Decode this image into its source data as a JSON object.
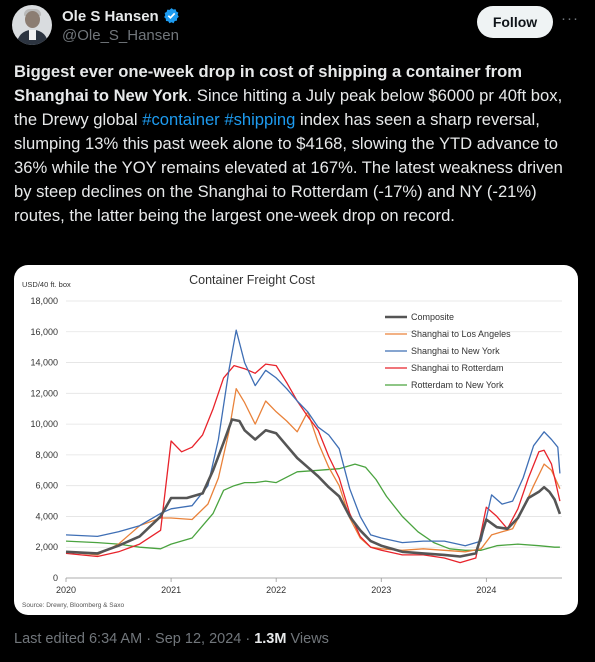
{
  "author": {
    "name": "Ole S Hansen",
    "handle": "@Ole_S_Hansen"
  },
  "actions": {
    "follow_label": "Follow",
    "more_label": "···"
  },
  "tweet": {
    "bold_text": "Biggest ever one-week drop in cost of shipping a container from Shanghai to New York",
    "text_1": ". Since hitting a July peak below $6000 pr 40ft box, the Drewy global ",
    "hashtag_1": "#container",
    "hashtag_2": "#shipping",
    "text_2": " index has seen a sharp reversal, slumping 13% this past week alone to $4168, slowing the YTD advance to 36% while the YOY remains elevated at 167%. The latest weakness driven by steep declines on the Shanghai to Rotterdam (-17%) and NY (-21%) routes, the latter being the largest one-week drop on record."
  },
  "meta": {
    "edited": "Last edited 6:34 AM · Sep 12, 2024 · ",
    "views_count": "1.3M",
    "views_label": " Views"
  },
  "chart_data": {
    "type": "line",
    "title": "Container Freight Cost",
    "unit_label": "USD/40 ft. box",
    "source": "Source: Drewry, Bloomberg & Saxo",
    "xlim": [
      2020,
      2024.72
    ],
    "ylim": [
      0,
      18000
    ],
    "y_ticks": [
      "0",
      "2,000",
      "4,000",
      "6,000",
      "8,000",
      "10,000",
      "12,000",
      "14,000",
      "16,000",
      "18,000"
    ],
    "x_ticks": [
      "2020",
      "2021",
      "2022",
      "2023",
      "2024"
    ],
    "grid": "horizontal",
    "legend_position": "top-right",
    "series": [
      {
        "name": "Composite",
        "color": "#555555",
        "width": 2.6,
        "points": [
          [
            2020.0,
            1700
          ],
          [
            2020.3,
            1600
          ],
          [
            2020.5,
            2100
          ],
          [
            2020.7,
            2700
          ],
          [
            2020.9,
            4000
          ],
          [
            2021.0,
            5200
          ],
          [
            2021.15,
            5200
          ],
          [
            2021.3,
            5500
          ],
          [
            2021.4,
            7000
          ],
          [
            2021.5,
            8800
          ],
          [
            2021.58,
            10300
          ],
          [
            2021.65,
            10200
          ],
          [
            2021.7,
            9600
          ],
          [
            2021.8,
            9000
          ],
          [
            2021.9,
            9600
          ],
          [
            2022.0,
            9400
          ],
          [
            2022.1,
            8600
          ],
          [
            2022.2,
            7800
          ],
          [
            2022.3,
            7200
          ],
          [
            2022.4,
            6600
          ],
          [
            2022.5,
            5900
          ],
          [
            2022.6,
            5300
          ],
          [
            2022.7,
            4000
          ],
          [
            2022.8,
            3100
          ],
          [
            2022.9,
            2400
          ],
          [
            2023.0,
            2100
          ],
          [
            2023.2,
            1700
          ],
          [
            2023.4,
            1600
          ],
          [
            2023.6,
            1500
          ],
          [
            2023.75,
            1400
          ],
          [
            2023.9,
            1600
          ],
          [
            2024.0,
            3800
          ],
          [
            2024.1,
            3300
          ],
          [
            2024.2,
            3200
          ],
          [
            2024.3,
            3900
          ],
          [
            2024.4,
            5200
          ],
          [
            2024.5,
            5600
          ],
          [
            2024.55,
            5900
          ],
          [
            2024.6,
            5600
          ],
          [
            2024.65,
            5100
          ],
          [
            2024.7,
            4168
          ]
        ]
      },
      {
        "name": "Shanghai to Los Angeles",
        "color": "#e9823a",
        "width": 1.3,
        "points": [
          [
            2020.0,
            1700
          ],
          [
            2020.3,
            1500
          ],
          [
            2020.5,
            2200
          ],
          [
            2020.7,
            3400
          ],
          [
            2020.9,
            3900
          ],
          [
            2021.0,
            3900
          ],
          [
            2021.2,
            3800
          ],
          [
            2021.35,
            4800
          ],
          [
            2021.45,
            6500
          ],
          [
            2021.55,
            9500
          ],
          [
            2021.62,
            12300
          ],
          [
            2021.7,
            11400
          ],
          [
            2021.8,
            10000
          ],
          [
            2021.9,
            11500
          ],
          [
            2022.0,
            10800
          ],
          [
            2022.1,
            10200
          ],
          [
            2022.2,
            9500
          ],
          [
            2022.3,
            10800
          ],
          [
            2022.4,
            8800
          ],
          [
            2022.5,
            7200
          ],
          [
            2022.6,
            6000
          ],
          [
            2022.7,
            3900
          ],
          [
            2022.8,
            2600
          ],
          [
            2022.9,
            2000
          ],
          [
            2023.0,
            1900
          ],
          [
            2023.2,
            1800
          ],
          [
            2023.4,
            1900
          ],
          [
            2023.6,
            1800
          ],
          [
            2023.8,
            1700
          ],
          [
            2023.95,
            1900
          ],
          [
            2024.05,
            2800
          ],
          [
            2024.15,
            3000
          ],
          [
            2024.25,
            3200
          ],
          [
            2024.35,
            4500
          ],
          [
            2024.45,
            6000
          ],
          [
            2024.55,
            7400
          ],
          [
            2024.62,
            7000
          ],
          [
            2024.7,
            5800
          ]
        ]
      },
      {
        "name": "Shanghai to New York",
        "color": "#3f6fb5",
        "width": 1.3,
        "points": [
          [
            2020.0,
            2800
          ],
          [
            2020.3,
            2700
          ],
          [
            2020.5,
            3000
          ],
          [
            2020.7,
            3400
          ],
          [
            2020.9,
            4200
          ],
          [
            2021.0,
            4500
          ],
          [
            2021.2,
            4700
          ],
          [
            2021.35,
            6000
          ],
          [
            2021.45,
            9000
          ],
          [
            2021.55,
            13500
          ],
          [
            2021.62,
            16100
          ],
          [
            2021.7,
            14000
          ],
          [
            2021.8,
            12500
          ],
          [
            2021.9,
            13500
          ],
          [
            2022.0,
            13000
          ],
          [
            2022.1,
            12300
          ],
          [
            2022.2,
            11500
          ],
          [
            2022.3,
            10800
          ],
          [
            2022.4,
            9800
          ],
          [
            2022.5,
            9300
          ],
          [
            2022.6,
            8400
          ],
          [
            2022.7,
            5800
          ],
          [
            2022.8,
            4000
          ],
          [
            2022.9,
            2800
          ],
          [
            2023.0,
            2600
          ],
          [
            2023.2,
            2300
          ],
          [
            2023.4,
            2400
          ],
          [
            2023.6,
            2400
          ],
          [
            2023.8,
            2100
          ],
          [
            2023.95,
            2400
          ],
          [
            2024.05,
            5400
          ],
          [
            2024.15,
            4800
          ],
          [
            2024.25,
            5000
          ],
          [
            2024.35,
            6500
          ],
          [
            2024.45,
            8600
          ],
          [
            2024.55,
            9500
          ],
          [
            2024.62,
            9000
          ],
          [
            2024.68,
            8500
          ],
          [
            2024.7,
            6800
          ]
        ]
      },
      {
        "name": "Shanghai to Rotterdam",
        "color": "#e8232b",
        "width": 1.3,
        "points": [
          [
            2020.0,
            1600
          ],
          [
            2020.3,
            1400
          ],
          [
            2020.5,
            1700
          ],
          [
            2020.7,
            2200
          ],
          [
            2020.9,
            3100
          ],
          [
            2021.0,
            8900
          ],
          [
            2021.1,
            8200
          ],
          [
            2021.2,
            8500
          ],
          [
            2021.3,
            9300
          ],
          [
            2021.4,
            11000
          ],
          [
            2021.5,
            13000
          ],
          [
            2021.6,
            13800
          ],
          [
            2021.7,
            13600
          ],
          [
            2021.8,
            13300
          ],
          [
            2021.9,
            13900
          ],
          [
            2022.0,
            13800
          ],
          [
            2022.1,
            12700
          ],
          [
            2022.2,
            11500
          ],
          [
            2022.3,
            10500
          ],
          [
            2022.4,
            9600
          ],
          [
            2022.5,
            7900
          ],
          [
            2022.6,
            6500
          ],
          [
            2022.7,
            4200
          ],
          [
            2022.8,
            2700
          ],
          [
            2022.9,
            2000
          ],
          [
            2023.0,
            1800
          ],
          [
            2023.2,
            1500
          ],
          [
            2023.4,
            1500
          ],
          [
            2023.6,
            1300
          ],
          [
            2023.75,
            1000
          ],
          [
            2023.9,
            1300
          ],
          [
            2024.0,
            4600
          ],
          [
            2024.1,
            4000
          ],
          [
            2024.2,
            3200
          ],
          [
            2024.3,
            4500
          ],
          [
            2024.4,
            6500
          ],
          [
            2024.5,
            8200
          ],
          [
            2024.55,
            8300
          ],
          [
            2024.62,
            7400
          ],
          [
            2024.7,
            5000
          ]
        ]
      },
      {
        "name": "Rotterdam to New York",
        "color": "#4aa33f",
        "width": 1.3,
        "points": [
          [
            2020.0,
            2400
          ],
          [
            2020.3,
            2300
          ],
          [
            2020.5,
            2200
          ],
          [
            2020.7,
            2000
          ],
          [
            2020.9,
            1900
          ],
          [
            2021.0,
            2200
          ],
          [
            2021.2,
            2600
          ],
          [
            2021.3,
            3400
          ],
          [
            2021.4,
            4200
          ],
          [
            2021.5,
            5700
          ],
          [
            2021.6,
            6000
          ],
          [
            2021.7,
            6200
          ],
          [
            2021.8,
            6200
          ],
          [
            2021.9,
            6300
          ],
          [
            2022.0,
            6200
          ],
          [
            2022.2,
            6900
          ],
          [
            2022.4,
            7000
          ],
          [
            2022.6,
            7100
          ],
          [
            2022.75,
            7400
          ],
          [
            2022.85,
            7200
          ],
          [
            2022.95,
            6400
          ],
          [
            2023.05,
            5300
          ],
          [
            2023.2,
            4000
          ],
          [
            2023.35,
            3000
          ],
          [
            2023.5,
            2300
          ],
          [
            2023.65,
            1900
          ],
          [
            2023.8,
            1800
          ],
          [
            2023.95,
            1800
          ],
          [
            2024.1,
            2100
          ],
          [
            2024.3,
            2200
          ],
          [
            2024.5,
            2100
          ],
          [
            2024.65,
            2000
          ],
          [
            2024.7,
            2000
          ]
        ]
      }
    ]
  }
}
